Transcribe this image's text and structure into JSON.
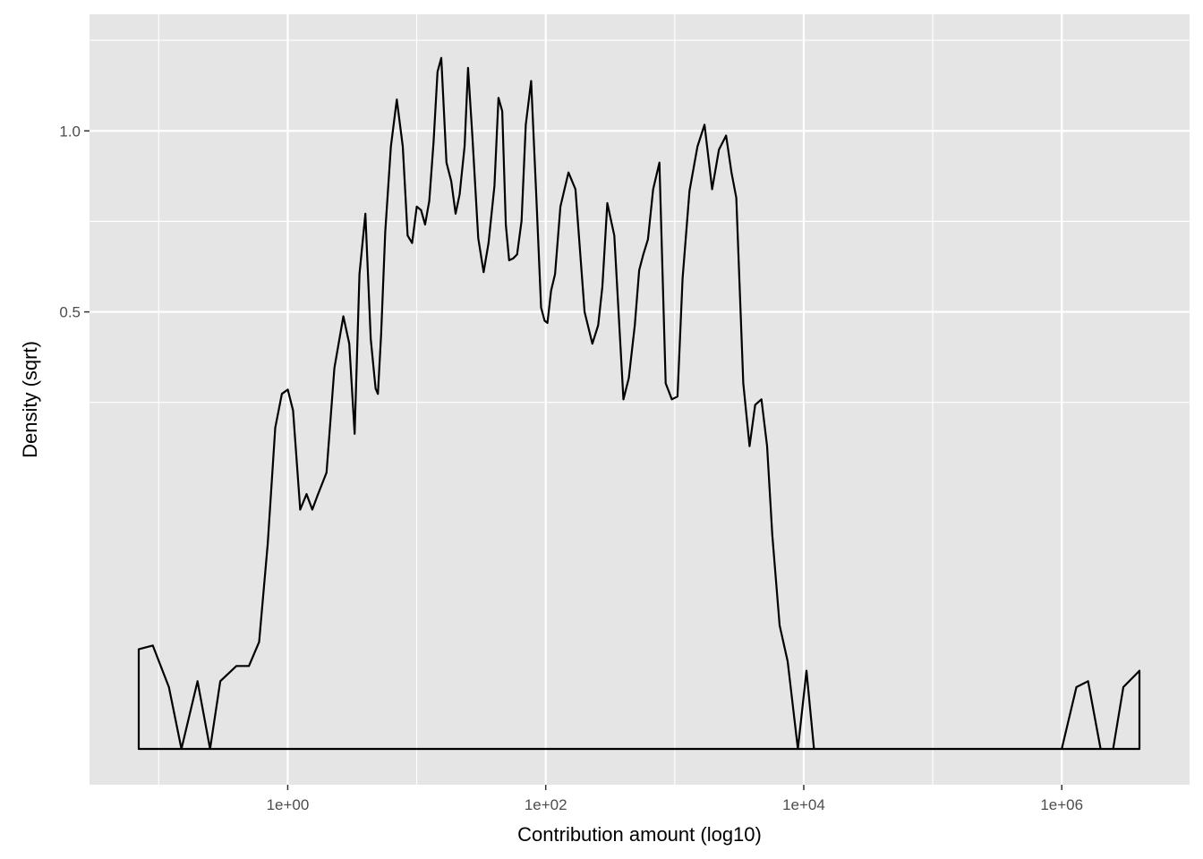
{
  "chart_data": {
    "type": "area",
    "title": "",
    "xlabel": "Contribution amount (log10)",
    "ylabel": "Density (sqrt)",
    "x_scale": "log10",
    "y_scale": "sqrt",
    "xlim": [
      0.07,
      4000000
    ],
    "ylim": [
      0,
      1.285
    ],
    "x_ticks": [
      {
        "value": 1,
        "label": "1e+00"
      },
      {
        "value": 100,
        "label": "1e+02"
      },
      {
        "value": 10000,
        "label": "1e+04"
      },
      {
        "value": 1000000,
        "label": "1e+06"
      }
    ],
    "y_ticks": [
      {
        "value": 0.5,
        "label": "0.5"
      },
      {
        "value": 1.0,
        "label": "1.0"
      }
    ],
    "grid": true,
    "panel_background": "#e5e5e5",
    "grid_color": "#ffffff",
    "line_color": "#000000",
    "series": [
      {
        "x": [
          0.07,
          0.09,
          0.12,
          0.15,
          0.2,
          0.25,
          0.3,
          0.4,
          0.5,
          0.6,
          0.7,
          0.8,
          0.9,
          1.0,
          1.1,
          1.25,
          1.4,
          1.55,
          1.7,
          2.0,
          2.3,
          2.7,
          3.0,
          3.3,
          3.6,
          4.0,
          4.4,
          4.8,
          5.0,
          5.3,
          5.7,
          6.3,
          7.0,
          7.8,
          8.5,
          9.2,
          10.0,
          10.8,
          11.6,
          12.5,
          13.5,
          14.5,
          15.5,
          17.0,
          18.5,
          20.0,
          21.5,
          23.5,
          25.0,
          27.0,
          30.0,
          33.0,
          36.0,
          40.0,
          43.0,
          46.0,
          49.0,
          52.0,
          56.0,
          60.0,
          65.0,
          70.0,
          77.0,
          85.0,
          92.0,
          98.0,
          103.0,
          110.0,
          118.0,
          130.0,
          150.0,
          170.0,
          200.0,
          230.0,
          255.0,
          275.0,
          300.0,
          340.0,
          400.0,
          440.0,
          490.0,
          530.0,
          570.0,
          620.0,
          680.0,
          760.0,
          850.0,
          950.0,
          1050.0,
          1150.0,
          1300.0,
          1500.0,
          1700.0,
          1950.0,
          2200.0,
          2500.0,
          2750.0,
          3000.0,
          3400.0,
          3800.0,
          4200.0,
          4700.0,
          5200.0,
          5700.0,
          6500.0,
          7500.0,
          9000.0,
          10500.0,
          12000.0,
          14000.0,
          20000.0,
          100000.0,
          500000.0,
          1000000.0,
          1300000.0,
          1600000.0,
          2000000.0,
          2500000.0,
          3000000.0,
          4000000.0
        ],
        "y": [
          0.026,
          0.028,
          0.01,
          0.0,
          0.012,
          0.0,
          0.012,
          0.018,
          0.018,
          0.03,
          0.11,
          0.27,
          0.33,
          0.338,
          0.3,
          0.15,
          0.17,
          0.15,
          0.168,
          0.2,
          0.38,
          0.49,
          0.43,
          0.26,
          0.59,
          0.75,
          0.44,
          0.34,
          0.33,
          0.45,
          0.7,
          0.95,
          1.104,
          0.95,
          0.69,
          0.67,
          0.77,
          0.76,
          0.72,
          0.786,
          0.965,
          1.2,
          1.25,
          0.9,
          0.844,
          0.75,
          0.805,
          0.952,
          1.214,
          0.98,
          0.683,
          0.595,
          0.67,
          0.83,
          1.11,
          1.065,
          0.72,
          0.625,
          0.63,
          0.64,
          0.73,
          1.02,
          1.168,
          0.78,
          0.51,
          0.48,
          0.475,
          0.55,
          0.59,
          0.77,
          0.87,
          0.82,
          0.5,
          0.43,
          0.47,
          0.56,
          0.78,
          0.69,
          0.32,
          0.36,
          0.47,
          0.6,
          0.64,
          0.68,
          0.82,
          0.9,
          0.35,
          0.32,
          0.325,
          0.58,
          0.815,
          0.95,
          1.02,
          0.82,
          0.94,
          0.985,
          0.87,
          0.795,
          0.35,
          0.24,
          0.31,
          0.32,
          0.24,
          0.12,
          0.04,
          0.02,
          0.0,
          0.016,
          0.0,
          0.0,
          0.0,
          0.0,
          0.0,
          0.0,
          0.01,
          0.012,
          0.0,
          0.0,
          0.01,
          0.016
        ]
      }
    ]
  }
}
